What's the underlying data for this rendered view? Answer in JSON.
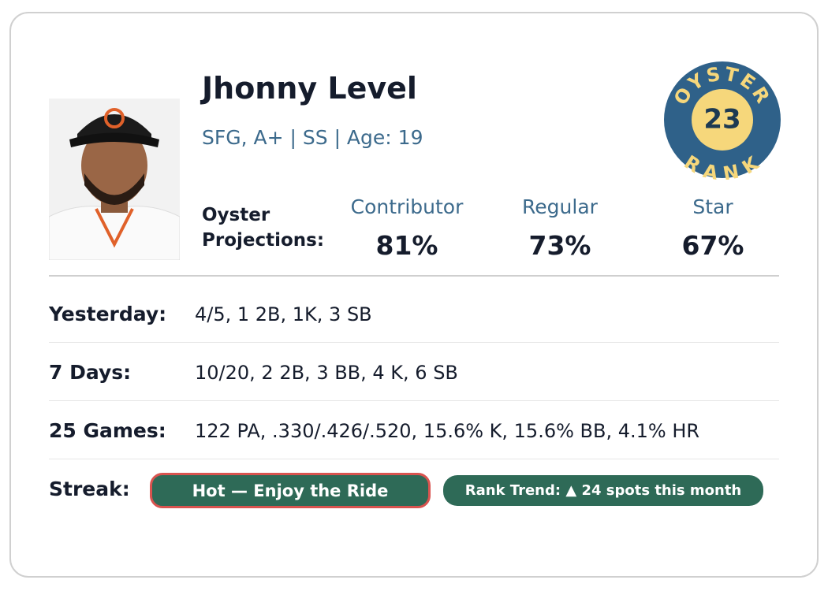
{
  "player": {
    "name": "Jhonny Level",
    "meta": "SFG, A+ | SS | Age: 19"
  },
  "badge": {
    "top": "OYSTER",
    "number": "23",
    "bottom": "RANK"
  },
  "projections": {
    "label_line1": "Oyster",
    "label_line2": "Projections:",
    "items": [
      {
        "label": "Contributor",
        "value": "81%"
      },
      {
        "label": "Regular",
        "value": "73%"
      },
      {
        "label": "Star",
        "value": "67%"
      }
    ]
  },
  "stats": [
    {
      "label": "Yesterday:",
      "value": "4/5, 1 2B, 1K, 3 SB"
    },
    {
      "label": "7 Days:",
      "value": "10/20, 2 2B, 3 BB, 4 K, 6 SB"
    },
    {
      "label": "25 Games:",
      "value": "122 PA, .330/.426/.520, 15.6% K, 15.6% BB, 4.1% HR"
    }
  ],
  "streak": {
    "label": "Streak:",
    "status": "Hot — Enjoy the Ride",
    "trend": "Rank Trend: ▲ 24 spots this month"
  }
}
